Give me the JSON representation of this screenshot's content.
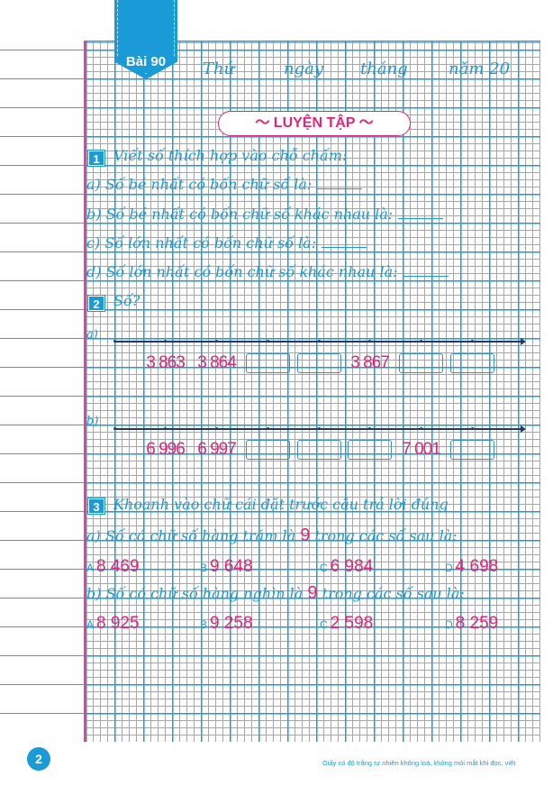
{
  "lesson_tag": "Bài 90",
  "date_line": {
    "thu": "Thứ",
    "ngay": "ngày",
    "thang": "tháng",
    "nam": "năm 20"
  },
  "title": "LUYỆN TẬP",
  "ex1": {
    "number": "1",
    "instruction": "Viết số thích hợp vào chỗ chấm:",
    "items": [
      "a) Số bé nhất có bốn chữ số là:",
      "b) Số bé nhất có bốn chữ số khác nhau là:",
      "c) Số lớn nhất có bốn chữ số là:",
      "d) Số lớn nhất có bốn chữ số khác nhau là:"
    ]
  },
  "ex2": {
    "number": "2",
    "instruction": "Số?",
    "a": {
      "label": "a)",
      "slots": [
        "3 863",
        "3 864",
        "",
        "",
        "3 867",
        "",
        ""
      ]
    },
    "b": {
      "label": "b)",
      "slots": [
        "6 996",
        "6 997",
        "",
        "",
        "",
        "7 001",
        ""
      ]
    }
  },
  "ex3": {
    "number": "3",
    "instruction": "Khoanh vào chữ cái đặt trước câu trả lời đúng",
    "a": {
      "prefix": "a) Số có chữ số hàng trăm là",
      "digit": "9",
      "suffix": "trong các số sau là:",
      "options": [
        {
          "letter": "A",
          "value": "8 469"
        },
        {
          "letter": "B",
          "value": "9 648"
        },
        {
          "letter": "C",
          "value": "6 984"
        },
        {
          "letter": "D",
          "value": "4 698"
        }
      ]
    },
    "b": {
      "prefix": "b) Số có chữ số hàng nghìn là",
      "digit": "9",
      "suffix": "trong các số sau là:",
      "options": [
        {
          "letter": "A",
          "value": "8 925"
        },
        {
          "letter": "B",
          "value": "9 258"
        },
        {
          "letter": "C",
          "value": "2 598"
        },
        {
          "letter": "D",
          "value": "8 259"
        }
      ]
    }
  },
  "page_number": "2",
  "footer": "Giấy có độ trắng tự nhiên không loá, không mỏi mắt khi đọc, viết",
  "colors": {
    "blue": "#1a9ad6",
    "pink": "#e0257a",
    "grid": "#1e9ad8"
  }
}
